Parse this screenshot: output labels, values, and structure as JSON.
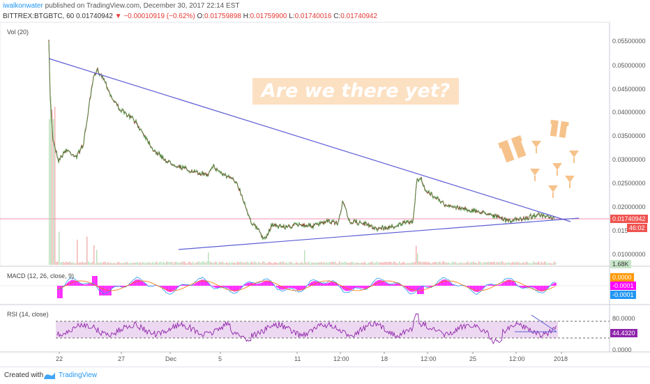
{
  "header": {
    "author": "iwalkonwater",
    "published": "published on TradingView.com, December 30, 2017 22:14 EST",
    "symbol": "BITTREX:BTGBTC, 60",
    "last": "0.01740942",
    "change_arrow": "▼",
    "change": "−0.00010919 (−0.62%)",
    "o_label": "O:",
    "o": "0.01759898",
    "h_label": "H:",
    "h": "0.01759900",
    "l_label": "L:",
    "l": "0.01740016",
    "c_label": "C:",
    "c": "0.01740942"
  },
  "panes": {
    "vol_label": "Vol (20)",
    "macd_label": "MACD (12, 26, close, 9)",
    "rsi_label": "RSI (14, close)"
  },
  "price_axis": [
    "0.05500000",
    "0.05000000",
    "0.04500000",
    "0.04000000",
    "0.03500000",
    "0.03000000",
    "0.02500000",
    "0.02000000",
    "0.015",
    "0.01000000"
  ],
  "price_tag": "0.01740942",
  "time_tag": "46:02",
  "vol_tag": "1.68K",
  "macd_axis": {
    "tag1": "0.0000",
    "tag2": "-0.0001",
    "tag3": "-0.0001"
  },
  "rsi_axis": {
    "top": "80.0000",
    "tag": "44.4320",
    "bottom": "0.0000"
  },
  "x_axis": [
    "22",
    "27",
    "Dec",
    "5",
    "11",
    "12:00",
    "18",
    "12:00",
    "25",
    "12:00",
    "2018"
  ],
  "annotation": "Are we there yet?",
  "footer": {
    "created_with": "Created with",
    "brand": "TradingView"
  },
  "colors": {
    "up": "#4caf50",
    "down": "#e53935",
    "trend": "#5c5cd6",
    "macd_hist": "#ff00ff",
    "rsi_band": "#e1bee7",
    "banner": "#fce0c2",
    "gifts": "#f6c28b"
  }
}
